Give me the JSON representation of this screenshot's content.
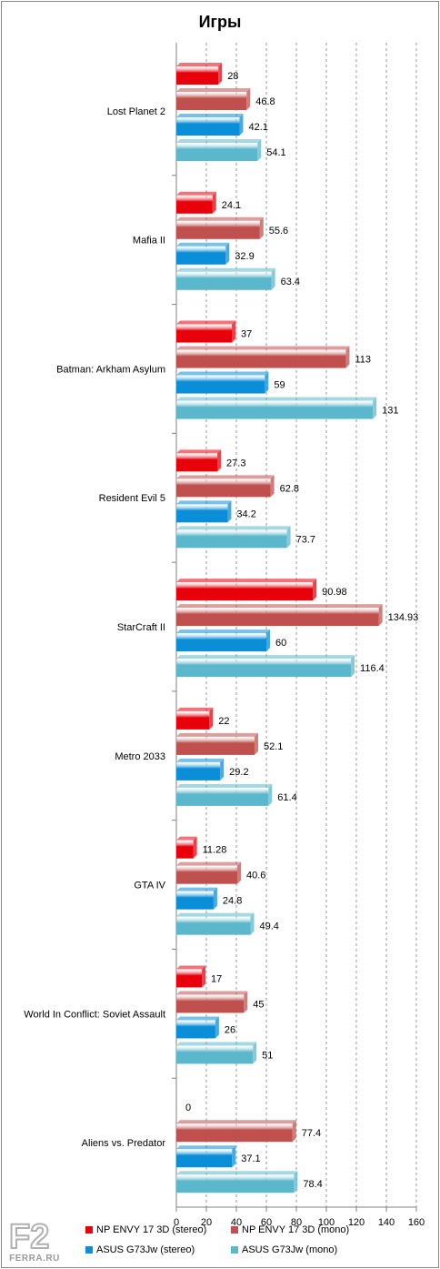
{
  "chart_data": {
    "type": "bar",
    "orientation": "horizontal",
    "title": "Игры",
    "categories": [
      "Lost Planet 2",
      "Mafia II",
      "Batman: Arkham Asylum",
      "Resident Evil 5",
      "StarCraft II",
      "Metro 2033",
      "GTA IV",
      "World In Conflict: Soviet Assault",
      "Aliens vs. Predator"
    ],
    "series": [
      {
        "name": "NP ENVY 17 3D (stereo)",
        "color": "#e8000b",
        "values": [
          28,
          24.1,
          37,
          27.3,
          90.98,
          22,
          11.28,
          17,
          0
        ],
        "labels": [
          "28",
          "24.1",
          "37",
          "27.3",
          "90.98",
          "22",
          "11.28",
          "17",
          "0"
        ]
      },
      {
        "name": "NP ENVY 17 3D (mono)",
        "color": "#c0504d",
        "values": [
          46.8,
          55.6,
          113,
          62.8,
          134.93,
          52.1,
          40.6,
          45,
          77.4
        ],
        "labels": [
          "46.8",
          "55.6",
          "113",
          "62.8",
          "134.93",
          "52.1",
          "40.6",
          "45",
          "77.4"
        ]
      },
      {
        "name": "ASUS G73Jw (stereo)",
        "color": "#0a8ed8",
        "values": [
          42.1,
          32.9,
          59,
          34.2,
          60,
          29.2,
          24.8,
          26,
          37.1
        ],
        "labels": [
          "42.1",
          "32.9",
          "59",
          "34.2",
          "60",
          "29.2",
          "24.8",
          "26",
          "37.1"
        ]
      },
      {
        "name": "ASUS G73Jw (mono)",
        "color": "#5bb8cc",
        "values": [
          54.1,
          63.4,
          131,
          73.7,
          116.4,
          61.4,
          49.4,
          51,
          78.4
        ],
        "labels": [
          "54.1",
          "63.4",
          "131",
          "73.7",
          "116.4",
          "61.4",
          "49.4",
          "51",
          "78.4"
        ]
      }
    ],
    "xlim": [
      0,
      160
    ],
    "xticks": [
      "0",
      "20",
      "40",
      "60",
      "80",
      "100",
      "120",
      "140",
      "160"
    ],
    "grid": "vertical dashed",
    "legend": "bottom"
  },
  "logo": {
    "text": "FERRA.RU"
  }
}
